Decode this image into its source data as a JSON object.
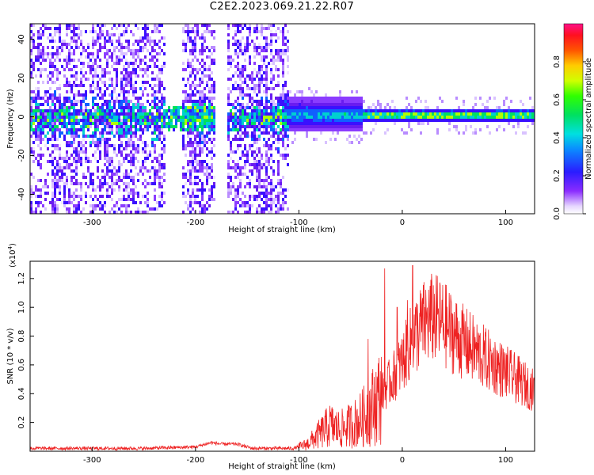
{
  "title": "C2E2.2023.069.21.22.R07",
  "colors": {
    "snr_line": "#ee2222",
    "spectrogram_weak": "#c9b3ff",
    "spectrogram_mid": "#6a1cf0",
    "spectrogram_peak": "#ee1111"
  },
  "chart_data": [
    {
      "type": "heatmap",
      "title": "C2E2.2023.069.21.22.R07",
      "xlabel": "Height of straight line (km)",
      "ylabel": "Frequency (Hz)",
      "xlim": [
        -360,
        128
      ],
      "ylim": [
        -50,
        48
      ],
      "xticks": [
        -300,
        -200,
        -100,
        0,
        100
      ],
      "yticks": [
        -40,
        -20,
        0,
        20,
        40
      ],
      "colorbar": {
        "label": "Normalized spectral amplitude",
        "range": [
          0.0,
          1.0
        ],
        "ticks": [
          "0.0",
          "0.2",
          "0.4",
          "0.6",
          "0.8"
        ],
        "tick_values": [
          0.0,
          0.2,
          0.4,
          0.6,
          0.8
        ],
        "colormap": "rainbow (white-violet-blue-cyan-green-yellow-red-magenta)"
      },
      "features": {
        "broadband_noise_x_ranges": [
          [
            -360,
            -230
          ],
          [
            -215,
            -182
          ],
          [
            -170,
            -110
          ]
        ],
        "quiet_gaps_x_ranges": [
          [
            -230,
            -215
          ],
          [
            -182,
            -170
          ],
          [
            -110,
            128
          ]
        ],
        "band_center_hz": 0,
        "signal_onset_km": -115,
        "strong_line_start_km": -40,
        "strong_line_hz": 1.5
      }
    },
    {
      "type": "line",
      "xlabel": "Height of straight line (km)",
      "ylabel": "SNR (10 * v/v)",
      "y_multiplier_label": "(x10",
      "y_multiplier_exponent": "4",
      "y_multiplier_suffix": ")",
      "xlim": [
        -360,
        128
      ],
      "ylim": [
        0,
        1.32
      ],
      "xticks": [
        -300,
        -200,
        -100,
        0,
        100
      ],
      "yticks": [
        "0.2",
        "0.4",
        "0.6",
        "0.8",
        "1.0",
        "1.2"
      ],
      "ytick_values": [
        0.2,
        0.4,
        0.6,
        0.8,
        1.0,
        1.2
      ],
      "series": [
        {
          "color": "#ee2222",
          "x": [
            -360,
            -330,
            -300,
            -250,
            -200,
            -185,
            -175,
            -160,
            -145,
            -120,
            -105,
            -92,
            -80,
            -70,
            -60,
            -50,
            -40,
            -30,
            -20,
            -10,
            0,
            10,
            20,
            30,
            40,
            55,
            70,
            85,
            100,
            115,
            128
          ],
          "y": [
            0.02,
            0.02,
            0.02,
            0.02,
            0.03,
            0.06,
            0.05,
            0.05,
            0.02,
            0.02,
            0.02,
            0.05,
            0.12,
            0.18,
            0.15,
            0.18,
            0.22,
            0.3,
            0.4,
            0.5,
            0.62,
            0.78,
            0.88,
            0.93,
            0.88,
            0.78,
            0.7,
            0.62,
            0.55,
            0.48,
            0.42
          ],
          "spikes": [
            {
              "x": -17,
              "y": 1.27
            },
            {
              "x": 10,
              "y": 1.29
            },
            {
              "x": 5,
              "y": 1.05
            },
            {
              "x": -33,
              "y": 0.78
            },
            {
              "x": -5,
              "y": 1.0
            }
          ]
        }
      ]
    }
  ]
}
